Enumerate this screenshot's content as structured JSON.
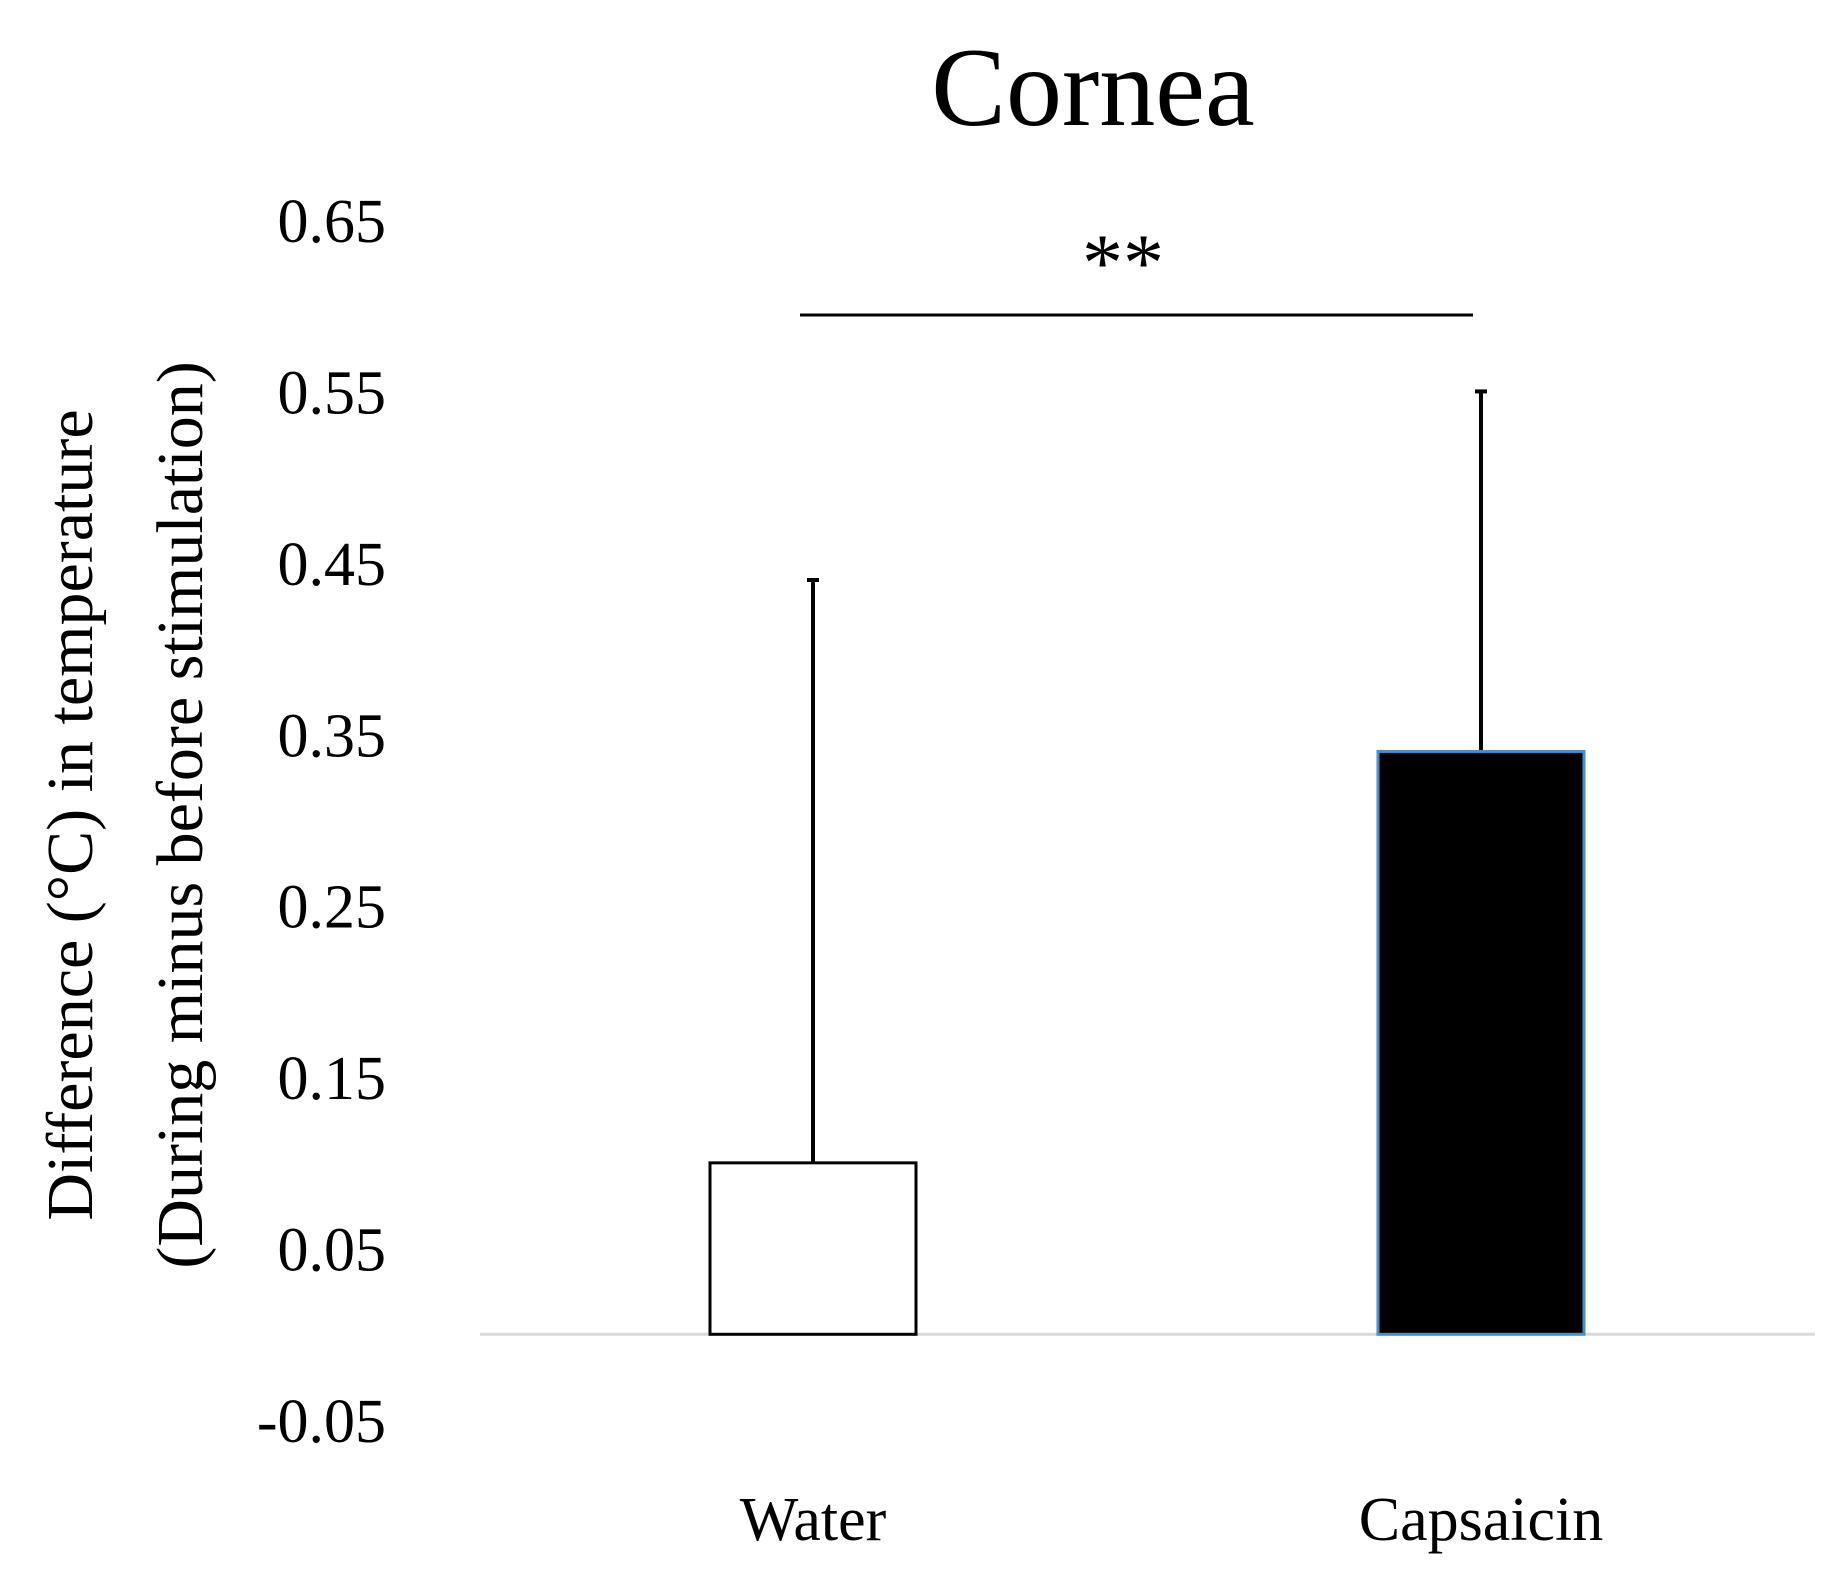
{
  "chart_data": {
    "type": "bar",
    "title": "Cornea",
    "ylabel_line1": "Difference (°C) in temperature",
    "ylabel_line2": "(During minus before stimulation)",
    "xlabel": "",
    "categories": [
      "Water",
      "Capsaicin"
    ],
    "values": [
      0.1,
      0.34
    ],
    "error_upper": [
      0.44,
      0.55
    ],
    "ylim": [
      -0.05,
      0.65
    ],
    "yticks": [
      "0.65",
      "0.55",
      "0.45",
      "0.35",
      "0.25",
      "0.15",
      "0.05",
      "-0.05"
    ],
    "ytick_values": [
      0.65,
      0.55,
      0.45,
      0.35,
      0.25,
      0.15,
      0.05,
      -0.05
    ],
    "baseline": 0.0,
    "significance": {
      "label": "**",
      "between": [
        "Water",
        "Capsaicin"
      ]
    },
    "grid": false,
    "legend": "none",
    "colors": {
      "water_fill": "#ffffff",
      "water_edge": "#000000",
      "capsaicin_fill": "#000000",
      "capsaicin_edge": "#4a90c8",
      "axis_line": "#d9d9d9"
    }
  }
}
